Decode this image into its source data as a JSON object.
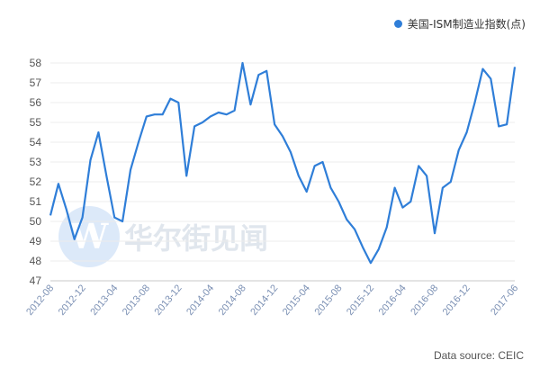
{
  "legend": {
    "series_name": "美国-ISM制造业指数(点)",
    "color": "#2f7ed8"
  },
  "watermark": {
    "brand_text": "华尔街见闻",
    "logo_letter": "W"
  },
  "source_text": "Data source: CEIC",
  "chart_data": {
    "type": "line",
    "title": "",
    "xlabel": "",
    "ylabel": "",
    "ylim": [
      47,
      58
    ],
    "yticks": [
      47,
      48,
      49,
      50,
      51,
      52,
      53,
      54,
      55,
      56,
      57,
      58
    ],
    "xtick_labels": [
      "2012-08",
      "2012-12",
      "2013-04",
      "2013-08",
      "2013-12",
      "2014-04",
      "2014-08",
      "2014-12",
      "2015-04",
      "2015-08",
      "2015-12",
      "2016-04",
      "2016-08",
      "2016-12",
      "2017-06"
    ],
    "grid": true,
    "legend_position": "top-right",
    "x": [
      "2012-08",
      "2012-09",
      "2012-10",
      "2012-11",
      "2012-12",
      "2013-01",
      "2013-02",
      "2013-03",
      "2013-04",
      "2013-05",
      "2013-06",
      "2013-07",
      "2013-08",
      "2013-09",
      "2013-10",
      "2013-11",
      "2013-12",
      "2014-01",
      "2014-02",
      "2014-03",
      "2014-04",
      "2014-05",
      "2014-06",
      "2014-07",
      "2014-08",
      "2014-09",
      "2014-10",
      "2014-11",
      "2014-12",
      "2015-01",
      "2015-02",
      "2015-03",
      "2015-04",
      "2015-05",
      "2015-06",
      "2015-07",
      "2015-08",
      "2015-09",
      "2015-10",
      "2015-11",
      "2015-12",
      "2016-01",
      "2016-02",
      "2016-03",
      "2016-04",
      "2016-05",
      "2016-06",
      "2016-07",
      "2016-08",
      "2016-09",
      "2016-10",
      "2016-11",
      "2016-12",
      "2017-01",
      "2017-02",
      "2017-03",
      "2017-04",
      "2017-05",
      "2017-06"
    ],
    "series": [
      {
        "name": "美国-ISM制造业指数(点)",
        "color": "#2f7ed8",
        "values": [
          50.3,
          51.9,
          50.6,
          49.1,
          50.2,
          53.1,
          54.5,
          52.3,
          50.2,
          50.0,
          52.6,
          54.0,
          55.3,
          55.4,
          55.4,
          56.2,
          56.0,
          52.3,
          54.8,
          55.0,
          55.3,
          55.5,
          55.4,
          55.6,
          58.0,
          55.9,
          57.4,
          57.6,
          54.9,
          54.3,
          53.5,
          52.3,
          51.5,
          52.8,
          53.0,
          51.7,
          51.0,
          50.1,
          49.6,
          48.7,
          47.9,
          48.6,
          49.7,
          51.7,
          50.7,
          51.0,
          52.8,
          52.3,
          49.4,
          51.7,
          52.0,
          53.6,
          54.5,
          56.0,
          57.7,
          57.2,
          54.8,
          54.9,
          57.8
        ]
      }
    ]
  }
}
